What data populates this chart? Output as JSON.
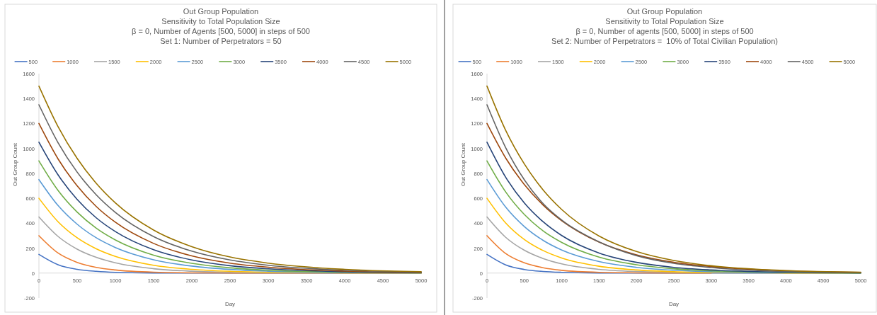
{
  "chart_data": [
    {
      "type": "line",
      "title": "Out Group Population",
      "subtitle": "Sensitivity to Total Population Size\nβ = 0, Number of Agents [500, 5000] in steps of 500\nSet 1: Number of Perpetrators = 50",
      "xlabel": "Day",
      "ylabel": "Out Group Count",
      "x": [
        0,
        250,
        500,
        750,
        1000,
        1500,
        2000,
        2500,
        3000,
        4000,
        5000
      ],
      "xlim": [
        0,
        5000
      ],
      "xticks": [
        0,
        500,
        1000,
        1500,
        2000,
        2500,
        3000,
        3500,
        4000,
        4500,
        5000
      ],
      "ylim": [
        -200,
        1600
      ],
      "yticks": [
        -200,
        0,
        200,
        400,
        600,
        800,
        1000,
        1200,
        1400,
        1600
      ],
      "legend": "top",
      "series": [
        {
          "name": "500",
          "color": "#4472c4",
          "values": [
            150,
            67,
            30,
            14,
            6,
            1,
            0,
            0,
            0,
            0,
            0
          ]
        },
        {
          "name": "1000",
          "color": "#ed7d31",
          "values": [
            300,
            161,
            86,
            46,
            25,
            7,
            2,
            1,
            0,
            0,
            0
          ]
        },
        {
          "name": "1500",
          "color": "#a5a5a5",
          "values": [
            450,
            294,
            192,
            126,
            82,
            35,
            15,
            6,
            3,
            0,
            0
          ]
        },
        {
          "name": "2000",
          "color": "#ffc000",
          "values": [
            600,
            412,
            283,
            195,
            134,
            63,
            30,
            14,
            7,
            2,
            0
          ]
        },
        {
          "name": "2500",
          "color": "#5b9bd5",
          "values": [
            750,
            542,
            392,
            283,
            205,
            107,
            56,
            29,
            15,
            4,
            1
          ]
        },
        {
          "name": "3000",
          "color": "#70ad47",
          "values": [
            900,
            663,
            489,
            360,
            266,
            144,
            78,
            42,
            23,
            7,
            2
          ]
        },
        {
          "name": "3500",
          "color": "#264478",
          "values": [
            1050,
            788,
            591,
            443,
            333,
            187,
            105,
            59,
            34,
            11,
            3
          ]
        },
        {
          "name": "4000",
          "color": "#9e480e",
          "values": [
            1200,
            916,
            700,
            534,
            408,
            238,
            138,
            80,
            47,
            16,
            5
          ]
        },
        {
          "name": "4500",
          "color": "#636363",
          "values": [
            1350,
            1046,
            810,
            628,
            487,
            293,
            176,
            105,
            63,
            23,
            8
          ]
        },
        {
          "name": "5000",
          "color": "#997300",
          "values": [
            1500,
            1175,
            920,
            720,
            563,
            345,
            212,
            129,
            80,
            30,
            11
          ]
        }
      ]
    },
    {
      "type": "line",
      "title": "Out Group Population",
      "subtitle": "Sensitivity to Total Population Size\nβ = 0, Number of agents [500, 5000] in steps of 500\nSet 2: Number of Perpetrators =  10% of Total Civilian Population)",
      "xlabel": "Day",
      "ylabel": "Out Group Count",
      "x": [
        0,
        250,
        500,
        750,
        1000,
        1500,
        2000,
        2500,
        3000,
        4000,
        5000
      ],
      "xlim": [
        0,
        5000
      ],
      "xticks": [
        0,
        500,
        1000,
        1500,
        2000,
        2500,
        3000,
        3500,
        4000,
        4500,
        5000
      ],
      "ylim": [
        -200,
        1600
      ],
      "yticks": [
        -200,
        0,
        200,
        400,
        600,
        800,
        1000,
        1200,
        1400,
        1600
      ],
      "legend": "top",
      "series": [
        {
          "name": "500",
          "color": "#4472c4",
          "values": [
            150,
            66,
            29,
            13,
            6,
            1,
            0,
            0,
            0,
            0,
            0
          ]
        },
        {
          "name": "1000",
          "color": "#ed7d31",
          "values": [
            300,
            157,
            82,
            43,
            22,
            6,
            2,
            0,
            0,
            null,
            null
          ]
        },
        {
          "name": "1500",
          "color": "#a5a5a5",
          "values": [
            450,
            287,
            183,
            117,
            74,
            30,
            12,
            5,
            2,
            0,
            0
          ]
        },
        {
          "name": "2000",
          "color": "#ffc000",
          "values": [
            600,
            402,
            269,
            181,
            121,
            55,
            25,
            11,
            5,
            1,
            0
          ]
        },
        {
          "name": "2500",
          "color": "#5b9bd5",
          "values": [
            750,
            529,
            373,
            263,
            185,
            92,
            46,
            23,
            11,
            3,
            1
          ]
        },
        {
          "name": "3000",
          "color": "#70ad47",
          "values": [
            900,
            651,
            470,
            339,
            246,
            128,
            67,
            35,
            18,
            5,
            1
          ]
        },
        {
          "name": "3500",
          "color": "#264478",
          "values": [
            1050,
            769,
            562,
            412,
            301,
            161,
            86,
            46,
            25,
            7,
            2
          ]
        },
        {
          "name": "4000",
          "color": "#9e480e",
          "values": [
            1200,
            923,
            710,
            546,
            420,
            248,
            146,
            86,
            52,
            18,
            6
          ]
        },
        {
          "name": "4500",
          "color": "#636363",
          "values": [
            1350,
            1006,
            748,
            558,
            425,
            250,
            140,
            78,
            44,
            12,
            4
          ]
        },
        {
          "name": "5000",
          "color": "#997300",
          "values": [
            1500,
            1145,
            875,
            668,
            510,
            297,
            173,
            101,
            59,
            20,
            7
          ]
        }
      ]
    }
  ]
}
